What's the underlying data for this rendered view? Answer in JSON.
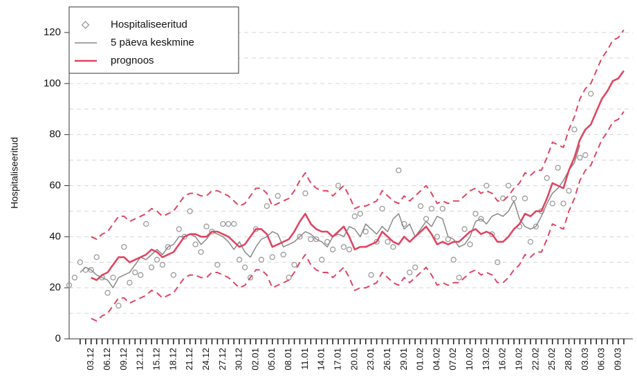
{
  "chart_data": {
    "type": "line",
    "y_label": "Hospitaliseeritud",
    "ylim": [
      0,
      120
    ],
    "yticks": [
      0,
      20,
      40,
      60,
      80,
      100,
      120
    ],
    "ygrid": [
      10,
      20,
      30,
      40,
      50,
      60,
      70,
      80,
      90,
      100,
      110,
      120
    ],
    "grid": true,
    "legend": "upper left",
    "categories": [
      null,
      null,
      null,
      null,
      "03.12",
      null,
      null,
      "06.12",
      null,
      null,
      "09.12",
      null,
      null,
      "12.12",
      null,
      null,
      "15.12",
      null,
      null,
      "18.12",
      null,
      null,
      "21.12",
      null,
      null,
      "24.12",
      null,
      null,
      "27.12",
      null,
      null,
      "30.12",
      null,
      null,
      "02.01",
      null,
      null,
      "05.01",
      null,
      null,
      "08.01",
      null,
      null,
      "11.01",
      null,
      null,
      "14.01",
      null,
      null,
      "17.01",
      null,
      null,
      "20.01",
      null,
      null,
      "23.01",
      null,
      null,
      "26.01",
      null,
      null,
      "29.01",
      null,
      null,
      "01.02",
      null,
      null,
      "04.02",
      null,
      null,
      "07.02",
      null,
      null,
      "10.02",
      null,
      null,
      "13.02",
      null,
      null,
      "16.02",
      null,
      null,
      "19.02",
      null,
      null,
      "22.02",
      null,
      null,
      "25.02",
      null,
      null,
      "28.02",
      null,
      null,
      "03.03",
      null,
      null,
      "06.03",
      null,
      null,
      "09.03",
      null
    ],
    "series": [
      {
        "name": "Hospitaliseeritud",
        "style": "points",
        "color": "#9a9a9a",
        "values": [
          21,
          24,
          30,
          27,
          27,
          32,
          24,
          18,
          24,
          13,
          36,
          22,
          26,
          25,
          45,
          28,
          31,
          29,
          36,
          25,
          43,
          40,
          50,
          37,
          34,
          44,
          42,
          29,
          45,
          45,
          45,
          31,
          28,
          24,
          43,
          31,
          52,
          32,
          56,
          33,
          24,
          29,
          40,
          57,
          39,
          39,
          31,
          38,
          35,
          60,
          36,
          35,
          48,
          49,
          42,
          25,
          38,
          51,
          38,
          36,
          66,
          45,
          26,
          28,
          52,
          47,
          51,
          40,
          51,
          39,
          31,
          24,
          43,
          37,
          49,
          47,
          60,
          41,
          30,
          55,
          60,
          55,
          44,
          55,
          38,
          44,
          50,
          63,
          53,
          67,
          53,
          58,
          82,
          71,
          72,
          96,
          null,
          null,
          null,
          null,
          null,
          null
        ]
      },
      {
        "name": "5 päeva keskmine",
        "style": "line",
        "color": "#888888",
        "values": [
          null,
          null,
          26,
          28,
          27,
          25,
          24,
          23,
          20,
          24,
          25,
          26,
          29,
          32,
          31,
          33,
          35,
          33,
          36,
          37,
          40,
          40,
          41,
          40,
          37,
          39,
          42,
          41,
          40,
          38,
          35,
          38,
          34,
          32,
          36,
          39,
          40,
          42,
          41,
          36,
          37,
          38,
          40,
          42,
          41,
          39,
          38,
          36,
          40,
          41,
          40,
          44,
          43,
          40,
          45,
          43,
          41,
          44,
          42,
          47,
          49,
          43,
          45,
          40,
          43,
          46,
          44,
          48,
          47,
          40,
          39,
          36,
          37,
          40,
          46,
          47,
          45,
          48,
          49,
          48,
          50,
          54,
          47,
          44,
          43,
          44,
          48,
          53,
          57,
          59,
          62,
          66,
          69,
          76,
          null,
          null,
          null,
          null,
          null,
          null,
          null,
          null
        ]
      },
      {
        "name": "prognoos",
        "style": "line",
        "color": "#df4561",
        "values": [
          null,
          null,
          null,
          null,
          24,
          23,
          25,
          26,
          29,
          32,
          32,
          30,
          31,
          32,
          33,
          35,
          34,
          32,
          33,
          34,
          37,
          40,
          41,
          41,
          40,
          40,
          42,
          42,
          41,
          40,
          38,
          36,
          37,
          40,
          43,
          43,
          41,
          36,
          37,
          38,
          39,
          42,
          46,
          49,
          45,
          43,
          42,
          42,
          40,
          42,
          44,
          40,
          35,
          36,
          36,
          37,
          38,
          42,
          40,
          38,
          37,
          40,
          38,
          40,
          42,
          44,
          41,
          37,
          38,
          37,
          38,
          38,
          40,
          42,
          43,
          41,
          42,
          41,
          38,
          38,
          40,
          43,
          45,
          49,
          48,
          50,
          50,
          55,
          61,
          60,
          59,
          66,
          71,
          78,
          82,
          84,
          89,
          94,
          97,
          101,
          102,
          105
        ]
      },
      {
        "style": "dashed",
        "color": "#df4561",
        "values": [
          null,
          null,
          null,
          null,
          40,
          39,
          41,
          42,
          45,
          48,
          48,
          46,
          47,
          48,
          49,
          51,
          50,
          48,
          49,
          50,
          53,
          56,
          57,
          57,
          56,
          56,
          58,
          58,
          57,
          56,
          54,
          52,
          53,
          56,
          59,
          59,
          57,
          52,
          53,
          54,
          55,
          58,
          62,
          65,
          61,
          59,
          58,
          58,
          56,
          58,
          60,
          56,
          51,
          52,
          52,
          53,
          54,
          58,
          56,
          54,
          53,
          56,
          54,
          56,
          58,
          60,
          57,
          53,
          54,
          53,
          54,
          54,
          56,
          58,
          59,
          57,
          58,
          57,
          54,
          54,
          56,
          59,
          61,
          65,
          64,
          66,
          66,
          71,
          77,
          76,
          75,
          82,
          87,
          94,
          98,
          100,
          105,
          110,
          113,
          117,
          118,
          121
        ]
      },
      {
        "style": "dashed",
        "color": "#df4561",
        "values": [
          null,
          null,
          null,
          null,
          8,
          7,
          9,
          10,
          13,
          16,
          16,
          14,
          15,
          16,
          17,
          19,
          18,
          16,
          17,
          18,
          21,
          24,
          25,
          25,
          24,
          24,
          26,
          26,
          25,
          24,
          22,
          20,
          21,
          24,
          27,
          27,
          25,
          20,
          21,
          22,
          23,
          26,
          30,
          33,
          29,
          27,
          26,
          26,
          24,
          26,
          28,
          24,
          19,
          20,
          20,
          21,
          22,
          26,
          24,
          22,
          21,
          24,
          22,
          24,
          26,
          28,
          25,
          21,
          22,
          21,
          22,
          22,
          24,
          26,
          27,
          25,
          26,
          25,
          22,
          22,
          24,
          27,
          29,
          33,
          32,
          34,
          34,
          39,
          45,
          44,
          43,
          50,
          55,
          62,
          66,
          68,
          73,
          78,
          81,
          85,
          86,
          89
        ]
      }
    ]
  }
}
